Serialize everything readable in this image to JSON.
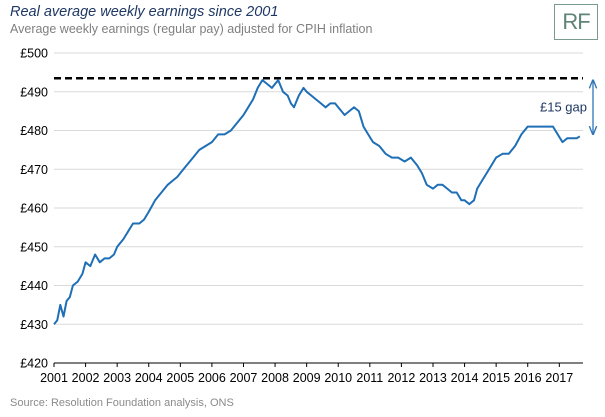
{
  "header": {
    "title": "Real average weekly earnings since 2001",
    "subtitle": "Average weekly earnings (regular pay) adjusted for CPIH inflation"
  },
  "logo": {
    "text": "RF"
  },
  "footer": {
    "source": "Source: Resolution Foundation analysis, ONS"
  },
  "colors": {
    "line": "#1f6fb6",
    "title": "#1f3864",
    "peak_line": "#000000",
    "gap_arrow": "#2e75b6"
  },
  "chart_data": {
    "type": "line",
    "title": "Real average weekly earnings since 2001",
    "subtitle": "Average weekly earnings (regular pay) adjusted for CPIH inflation",
    "xlabel": "",
    "ylabel": "",
    "xlim": [
      2001,
      2017.75
    ],
    "ylim": [
      420,
      500
    ],
    "y_ticks": [
      420,
      430,
      440,
      450,
      460,
      470,
      480,
      490,
      500
    ],
    "y_tick_labels": [
      "£420",
      "£430",
      "£440",
      "£450",
      "£460",
      "£470",
      "£480",
      "£490",
      "£500"
    ],
    "x_ticks": [
      2001,
      2002,
      2003,
      2004,
      2005,
      2006,
      2007,
      2008,
      2009,
      2010,
      2011,
      2012,
      2013,
      2014,
      2015,
      2016,
      2017
    ],
    "x_tick_labels": [
      "2001",
      "2002",
      "2003",
      "2004",
      "2005",
      "2006",
      "2007",
      "2008",
      "2009",
      "2010",
      "2011",
      "2012",
      "2013",
      "2014",
      "2015",
      "2016",
      "2017"
    ],
    "grid": "horizontal",
    "legend": "none",
    "series": [
      {
        "x": [
          2001.0,
          2001.1,
          2001.2,
          2001.3,
          2001.4,
          2001.5,
          2001.6,
          2001.75,
          2001.9,
          2002.0,
          2002.15,
          2002.3,
          2002.45,
          2002.6,
          2002.75,
          2002.9,
          2003.0,
          2003.2,
          2003.35,
          2003.5,
          2003.7,
          2003.85,
          2004.0,
          2004.2,
          2004.4,
          2004.6,
          2004.75,
          2004.9,
          2005.0,
          2005.2,
          2005.4,
          2005.6,
          2005.8,
          2006.0,
          2006.2,
          2006.4,
          2006.6,
          2006.8,
          2007.0,
          2007.15,
          2007.3,
          2007.45,
          2007.6,
          2007.75,
          2007.9,
          2008.1,
          2008.25,
          2008.4,
          2008.5,
          2008.6,
          2008.75,
          2008.9,
          2009.0,
          2009.15,
          2009.3,
          2009.45,
          2009.6,
          2009.75,
          2009.9,
          2010.0,
          2010.1,
          2010.2,
          2010.35,
          2010.5,
          2010.65,
          2010.8,
          2010.95,
          2011.1,
          2011.3,
          2011.5,
          2011.7,
          2011.9,
          2012.1,
          2012.3,
          2012.5,
          2012.65,
          2012.8,
          2013.0,
          2013.15,
          2013.3,
          2013.45,
          2013.6,
          2013.75,
          2013.9,
          2014.0,
          2014.15,
          2014.3,
          2014.4,
          2014.55,
          2014.7,
          2014.85,
          2015.0,
          2015.2,
          2015.4,
          2015.6,
          2015.8,
          2016.0,
          2016.2,
          2016.4,
          2016.6,
          2016.8,
          2016.95,
          2017.1,
          2017.25,
          2017.4,
          2017.55,
          2017.65
        ],
        "values": [
          430,
          431,
          435,
          432,
          436,
          437,
          440,
          441,
          443,
          446,
          445,
          448,
          446,
          447,
          447,
          448,
          450,
          452,
          454,
          456,
          456,
          457,
          459,
          462,
          464,
          466,
          467,
          468,
          469,
          471,
          473,
          475,
          476,
          477,
          479,
          479,
          480,
          482,
          484,
          486,
          488,
          491,
          493,
          492,
          491,
          493,
          490,
          489,
          487,
          486,
          489,
          491,
          490,
          489,
          488,
          487,
          486,
          487,
          487,
          486,
          485,
          484,
          485,
          486,
          485,
          481,
          479,
          477,
          476,
          474,
          473,
          473,
          472,
          473,
          471,
          469,
          466,
          465,
          466,
          466,
          465,
          464,
          464,
          462,
          462,
          461,
          462,
          465,
          467,
          469,
          471,
          473,
          474,
          474,
          476,
          479,
          481,
          481,
          481,
          481,
          481,
          479,
          477,
          478,
          478,
          478,
          478.5
        ]
      }
    ],
    "reference_line": {
      "value": 493.5,
      "style": "dashed"
    },
    "annotations": [
      {
        "text": "£15 gap",
        "from": 493.5,
        "to": 478.5
      }
    ]
  }
}
